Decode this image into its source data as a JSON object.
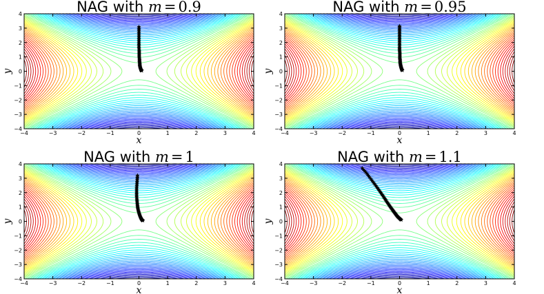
{
  "chart_data": [
    {
      "type": "line",
      "title": {
        "prefix": "NAG with ",
        "variable": "m",
        "equals": "=",
        "value": "0.9"
      },
      "xlabel": "x",
      "ylabel": "y",
      "xlim": [
        -4,
        4
      ],
      "ylim": [
        -4,
        4
      ],
      "xticks": [
        "−4",
        "−3",
        "−2",
        "−1",
        "0",
        "1",
        "2",
        "3",
        "4"
      ],
      "yticks": [
        "−4",
        "−3",
        "−2",
        "−1",
        "0",
        "1",
        "2",
        "3",
        "4"
      ],
      "contour_function": "x^2 - y^2 (saddle)",
      "grid": false,
      "trajectory": {
        "marker": "*",
        "color": "#000000",
        "x": [
          0.0,
          0.0,
          0.0,
          0.0,
          0.0,
          0.0,
          0.01,
          0.01,
          0.01,
          0.02,
          0.02,
          0.03,
          0.03,
          0.04,
          0.05,
          0.06,
          0.07,
          0.08,
          0.09,
          0.1
        ],
        "y": [
          3.1,
          2.8,
          2.5,
          2.2,
          1.9,
          1.65,
          1.4,
          1.2,
          1.0,
          0.8,
          0.65,
          0.5,
          0.38,
          0.28,
          0.2,
          0.14,
          0.1,
          0.07,
          0.05,
          0.04
        ]
      }
    },
    {
      "type": "line",
      "title": {
        "prefix": "NAG with ",
        "variable": "m",
        "equals": "=",
        "value": "0.95"
      },
      "xlabel": "x",
      "ylabel": "y",
      "xlim": [
        -4,
        4
      ],
      "ylim": [
        -4,
        4
      ],
      "xticks": [
        "−4",
        "−3",
        "−2",
        "−1",
        "0",
        "1",
        "2",
        "3",
        "4"
      ],
      "yticks": [
        "−4",
        "−3",
        "−2",
        "−1",
        "0",
        "1",
        "2",
        "3",
        "4"
      ],
      "contour_function": "x^2 - y^2 (saddle)",
      "grid": false,
      "trajectory": {
        "marker": "*",
        "color": "#000000",
        "x": [
          0.0,
          0.0,
          0.0,
          0.0,
          0.0,
          0.0,
          0.0,
          0.0,
          0.01,
          0.01,
          0.01,
          0.02,
          0.02,
          0.03,
          0.04,
          0.05,
          0.06,
          0.07,
          0.08,
          0.1
        ],
        "y": [
          3.15,
          2.9,
          2.65,
          2.4,
          2.15,
          1.9,
          1.65,
          1.45,
          1.25,
          1.05,
          0.88,
          0.72,
          0.58,
          0.46,
          0.36,
          0.27,
          0.2,
          0.14,
          0.1,
          0.06
        ]
      }
    },
    {
      "type": "line",
      "title": {
        "prefix": "NAG with ",
        "variable": "m",
        "equals": "=",
        "value": "1"
      },
      "xlabel": "x",
      "ylabel": "y",
      "xlim": [
        -4,
        4
      ],
      "ylim": [
        -4,
        4
      ],
      "xticks": [
        "−4",
        "−3",
        "−2",
        "−1",
        "0",
        "1",
        "2",
        "3",
        "4"
      ],
      "yticks": [
        "−4",
        "−3",
        "−2",
        "−1",
        "0",
        "1",
        "2",
        "3",
        "4"
      ],
      "contour_function": "x^2 - y^2 (saddle)",
      "grid": false,
      "trajectory": {
        "marker": "*",
        "color": "#000000",
        "x": [
          -0.05,
          -0.06,
          -0.07,
          -0.08,
          -0.08,
          -0.08,
          -0.07,
          -0.06,
          -0.05,
          -0.04,
          -0.02,
          0.0,
          0.02,
          0.04,
          0.06,
          0.08,
          0.1,
          0.12,
          0.14
        ],
        "y": [
          3.2,
          2.9,
          2.6,
          2.3,
          2.0,
          1.75,
          1.5,
          1.28,
          1.08,
          0.9,
          0.73,
          0.58,
          0.45,
          0.34,
          0.25,
          0.18,
          0.12,
          0.08,
          0.05
        ]
      }
    },
    {
      "type": "line",
      "title": {
        "prefix": "NAG with ",
        "variable": "m",
        "equals": "=",
        "value": "1.1"
      },
      "xlabel": "x",
      "ylabel": "y",
      "xlim": [
        -4,
        4
      ],
      "ylim": [
        -4,
        4
      ],
      "xticks": [
        "−4",
        "−3",
        "−2",
        "−1",
        "0",
        "1",
        "2",
        "3",
        "4"
      ],
      "yticks": [
        "−4",
        "−3",
        "−2",
        "−1",
        "0",
        "1",
        "2",
        "3",
        "4"
      ],
      "contour_function": "x^2 - y^2 (saddle)",
      "grid": false,
      "trajectory": {
        "marker": "*",
        "color": "#000000",
        "x": [
          -1.3,
          -1.15,
          -1.02,
          -0.9,
          -0.79,
          -0.69,
          -0.6,
          -0.52,
          -0.45,
          -0.38,
          -0.32,
          -0.26,
          -0.21,
          -0.16,
          -0.12,
          -0.08,
          -0.04,
          0.0,
          0.03,
          0.06
        ],
        "y": [
          3.7,
          3.35,
          3.0,
          2.68,
          2.38,
          2.1,
          1.84,
          1.6,
          1.38,
          1.18,
          1.0,
          0.84,
          0.7,
          0.57,
          0.46,
          0.36,
          0.28,
          0.21,
          0.15,
          0.1
        ]
      }
    }
  ],
  "colors": {
    "colormap": [
      "#00007f",
      "#0000ff",
      "#007fff",
      "#00ffff",
      "#7fff7f",
      "#ffff00",
      "#ff7f00",
      "#ff0000",
      "#7f0000"
    ],
    "frame": "#000000",
    "background": "#ffffff"
  }
}
